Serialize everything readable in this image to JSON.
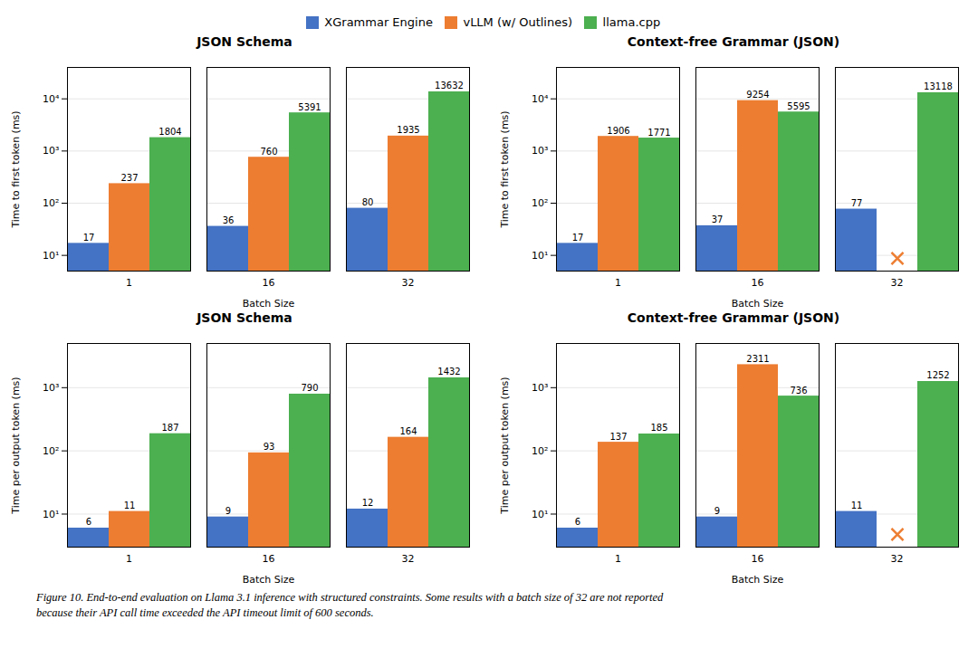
{
  "chart_data": [
    {
      "type": "bar",
      "title": "JSON Schema",
      "xlabel": "Batch Size",
      "ylabel": "Time to first token (ms)",
      "categories": [
        "1",
        "16",
        "32"
      ],
      "series": [
        {
          "name": "XGrammar Engine",
          "color": "#4472c4",
          "values": [
            17,
            36,
            80
          ],
          "marker": "x"
        },
        {
          "name": "vLLM (w/ Outlines)",
          "color": "#ed7d31",
          "values": [
            237,
            760,
            1935
          ],
          "marker": "x"
        },
        {
          "name": "llama.cpp",
          "color": "#4caf50",
          "values": [
            1804,
            5391,
            13632
          ],
          "marker": "x"
        }
      ],
      "log": "y",
      "ylim": [
        5,
        40000
      ],
      "yticks": [
        {
          "value": 10,
          "label": "10¹"
        },
        {
          "value": 100,
          "label": "10²"
        },
        {
          "value": 1000,
          "label": "10³"
        },
        {
          "value": 10000,
          "label": "10⁴"
        }
      ],
      "grid": true,
      "data_labels": true,
      "legend": "upper center"
    },
    {
      "type": "bar",
      "title": "Context-free Grammar (JSON)",
      "xlabel": "Batch Size",
      "ylabel": "Time to first token (ms)",
      "categories": [
        "1",
        "16",
        "32"
      ],
      "series": [
        {
          "name": "XGrammar Engine",
          "color": "#4472c4",
          "values": [
            17,
            37,
            77
          ],
          "marker": "x"
        },
        {
          "name": "vLLM (w/ Outlines)",
          "color": "#ed7d31",
          "values": [
            1906,
            9254,
            null
          ],
          "marker": "x"
        },
        {
          "name": "llama.cpp",
          "color": "#4caf50",
          "values": [
            1771,
            5595,
            13118
          ],
          "marker": "x"
        }
      ],
      "log": "y",
      "ylim": [
        5,
        40000
      ],
      "yticks": [
        {
          "value": 10,
          "label": "10¹"
        },
        {
          "value": 100,
          "label": "10²"
        },
        {
          "value": 1000,
          "label": "10³"
        },
        {
          "value": 10000,
          "label": "10⁴"
        }
      ],
      "grid": true,
      "data_labels": true,
      "legend": "upper center"
    },
    {
      "type": "bar",
      "title": "JSON Schema",
      "xlabel": "Batch Size",
      "ylabel": "Time per output token (ms)",
      "categories": [
        "1",
        "16",
        "32"
      ],
      "series": [
        {
          "name": "XGrammar Engine",
          "color": "#4472c4",
          "values": [
            6,
            9,
            12
          ],
          "marker": "x"
        },
        {
          "name": "vLLM (w/ Outlines)",
          "color": "#ed7d31",
          "values": [
            11,
            93,
            164
          ],
          "marker": "x"
        },
        {
          "name": "llama.cpp",
          "color": "#4caf50",
          "values": [
            187,
            790,
            1432
          ],
          "marker": "x"
        }
      ],
      "log": "y",
      "ylim": [
        3,
        5000
      ],
      "yticks": [
        {
          "value": 10,
          "label": "10¹"
        },
        {
          "value": 100,
          "label": "10²"
        },
        {
          "value": 1000,
          "label": "10³"
        }
      ],
      "grid": true,
      "data_labels": true,
      "legend": "upper center"
    },
    {
      "type": "bar",
      "title": "Context-free Grammar (JSON)",
      "xlabel": "Batch Size",
      "ylabel": "Time per output token (ms)",
      "categories": [
        "1",
        "16",
        "32"
      ],
      "series": [
        {
          "name": "XGrammar Engine",
          "color": "#4472c4",
          "values": [
            6,
            9,
            11
          ],
          "marker": "x"
        },
        {
          "name": "vLLM (w/ Outlines)",
          "color": "#ed7d31",
          "values": [
            137,
            2311,
            null
          ],
          "marker": "x"
        },
        {
          "name": "llama.cpp",
          "color": "#4caf50",
          "values": [
            185,
            736,
            1252
          ],
          "marker": "x"
        }
      ],
      "log": "y",
      "ylim": [
        3,
        5000
      ],
      "yticks": [
        {
          "value": 10,
          "label": "10¹"
        },
        {
          "value": 100,
          "label": "10²"
        },
        {
          "value": 1000,
          "label": "10³"
        }
      ],
      "grid": true,
      "data_labels": true,
      "legend": "upper center"
    }
  ],
  "caption": [
    "Figure 10. End-to-end evaluation on Llama 3.1 inference with structured constraints. Some results with a batch size of 32 are not reported",
    "because their API call time exceeded the API timeout limit of 600 seconds."
  ]
}
